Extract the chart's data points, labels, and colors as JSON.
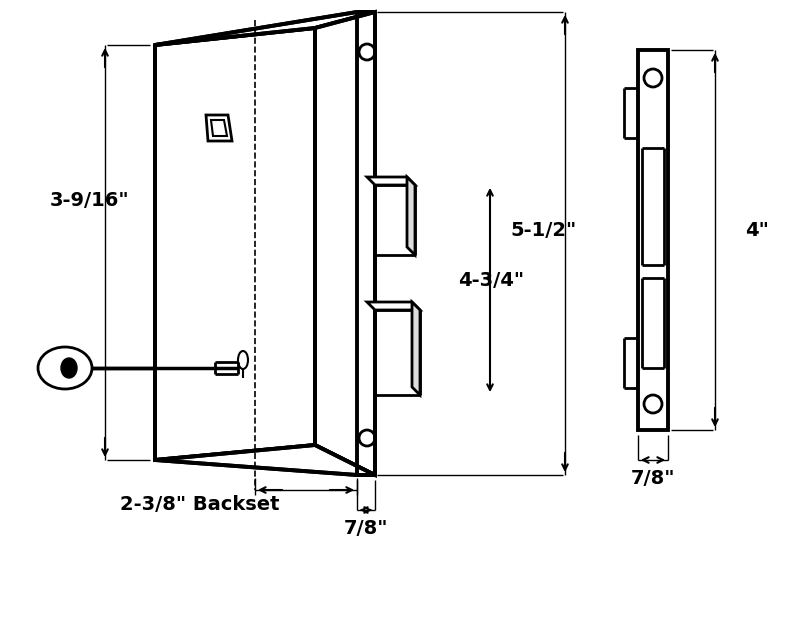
{
  "bg_color": "#ffffff",
  "line_color": "#000000",
  "lw_thin": 1.5,
  "lw_med": 2.0,
  "lw_thick": 2.8,
  "figsize": [
    8.0,
    6.44
  ],
  "dpi": 100,
  "labels": {
    "h_left": "3-9/16\"",
    "h_center": "5-1/2\"",
    "h_4": "4\"",
    "d_478": "4-3/4\"",
    "backset": "2-3/8\" Backset",
    "w_78_bot": "7/8\"",
    "w_78_right": "7/8\""
  },
  "fontsize": 14
}
